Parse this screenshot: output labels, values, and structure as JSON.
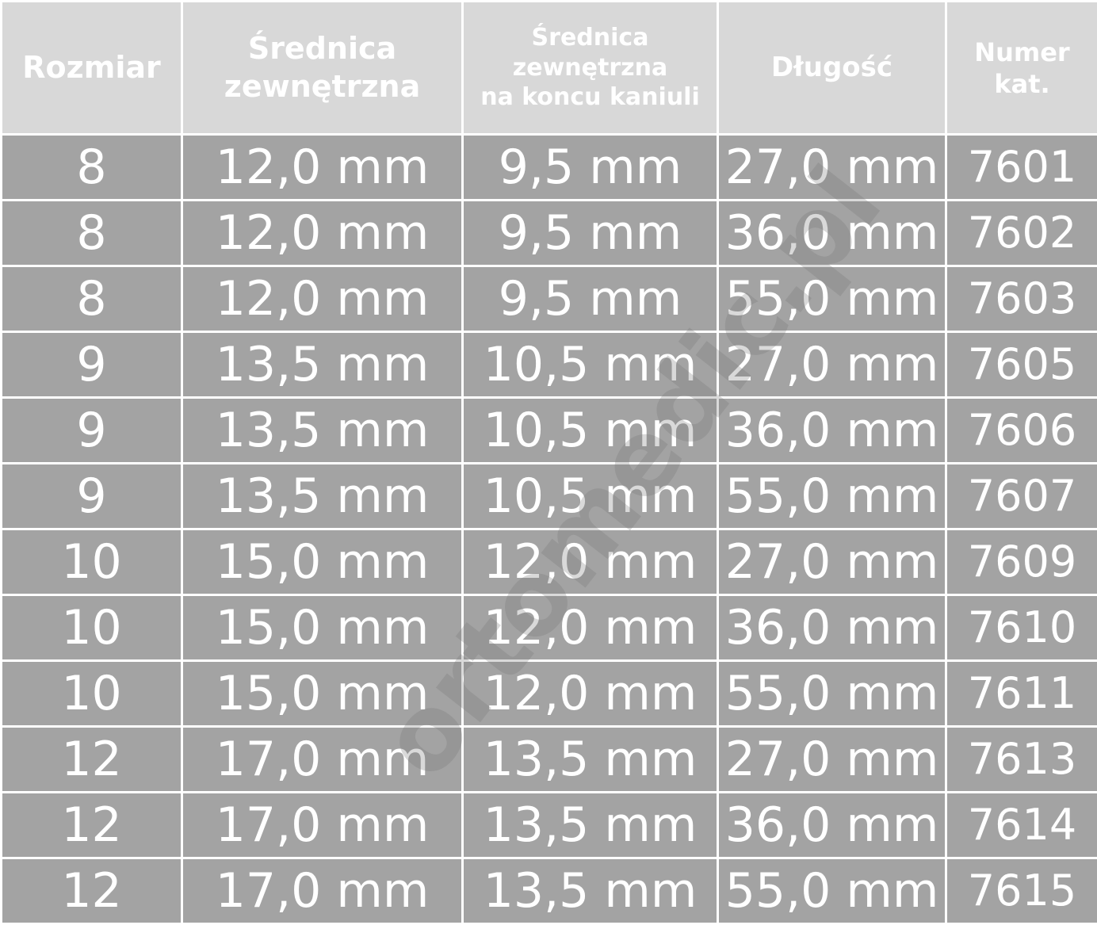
{
  "table": {
    "headers": [
      "Rozmiar",
      "Średnica\nzewnętrzna",
      "Średnica\nzewnętrzna\nna koncu kaniuli",
      "Długość",
      "Numer\nkat."
    ],
    "rows": [
      [
        "8",
        "12,0 mm",
        "9,5 mm",
        "27,0 mm",
        "7601"
      ],
      [
        "8",
        "12,0 mm",
        "9,5 mm",
        "36,0 mm",
        "7602"
      ],
      [
        "8",
        "12,0 mm",
        "9,5 mm",
        "55,0 mm",
        "7603"
      ],
      [
        "9",
        "13,5 mm",
        "10,5 mm",
        "27,0 mm",
        "7605"
      ],
      [
        "9",
        "13,5 mm",
        "10,5 mm",
        "36,0 mm",
        "7606"
      ],
      [
        "9",
        "13,5 mm",
        "10,5 mm",
        "55,0 mm",
        "7607"
      ],
      [
        "10",
        "15,0 mm",
        "12,0 mm",
        "27,0 mm",
        "7609"
      ],
      [
        "10",
        "15,0 mm",
        "12,0 mm",
        "36,0 mm",
        "7610"
      ],
      [
        "10",
        "15,0 mm",
        "12,0 mm",
        "55,0 mm",
        "7611"
      ],
      [
        "12",
        "17,0 mm",
        "13,5 mm",
        "27,0 mm",
        "7613"
      ],
      [
        "12",
        "17,0 mm",
        "13,5 mm",
        "36,0 mm",
        "7614"
      ],
      [
        "12",
        "17,0 mm",
        "13,5 mm",
        "55,0 mm",
        "7615"
      ]
    ]
  },
  "watermark": "ortomedic.pl",
  "colors": {
    "header_bg": "#d8d8d8",
    "row_bg": "#a3a3a3",
    "text": "#ffffff",
    "grid": "#ffffff"
  }
}
